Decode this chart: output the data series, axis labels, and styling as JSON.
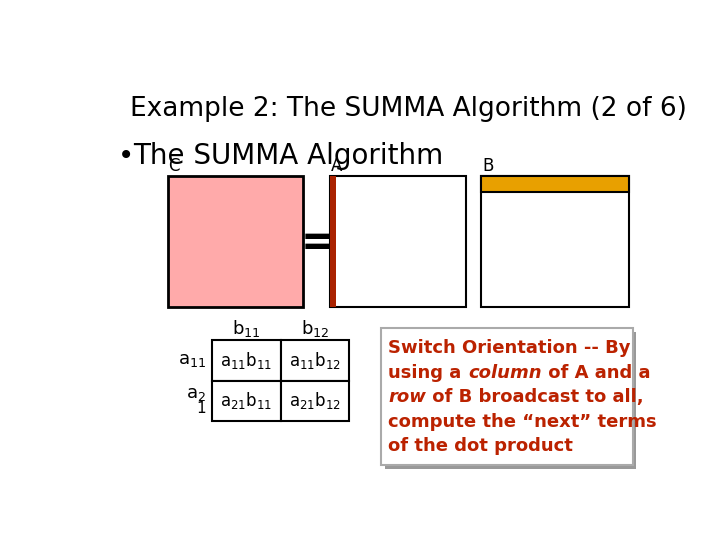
{
  "title": "Example 2: The SUMMA Algorithm (2 of 6)",
  "bullet": "The SUMMA Algorithm",
  "bg_color": "#ffffff",
  "title_fontsize": 19,
  "bullet_fontsize": 20,
  "C_label": "C",
  "A_label": "A",
  "B_label": "B",
  "C_fill": "#ffaaaa",
  "C_edge": "#000000",
  "A_fill": "#ffffff",
  "A_edge_color": "#aa2200",
  "B_fill": "#ffffff",
  "B_edge": "#000000",
  "B_top_fill": "#e8a000",
  "text_color_orange": "#bb2200",
  "text_color_black": "#000000",
  "shadow_color": "#999999",
  "box_edge_color": "#aaaaaa"
}
